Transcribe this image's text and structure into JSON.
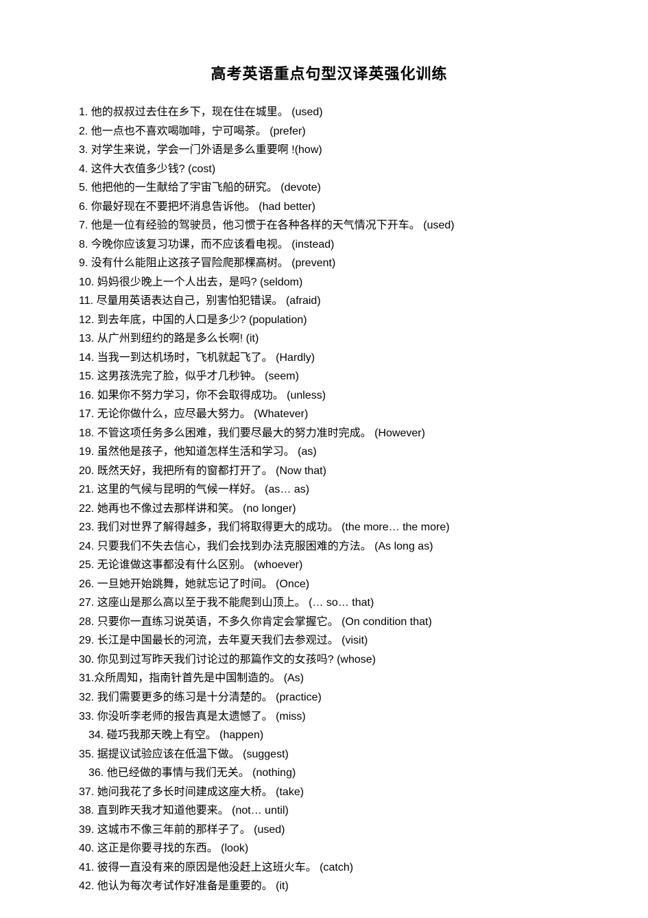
{
  "title": "高考英语重点句型汉译英强化训练",
  "title_fontsize": 22,
  "body_fontsize": 16,
  "line_height": 1.72,
  "background_color": "#ffffff",
  "text_color": "#000000",
  "items": [
    {
      "num": "1.",
      "sentence": "  他的叔叔过去住在乡下，现在住在城里。",
      "gap": "      ",
      "hint": "(used)",
      "indent": false
    },
    {
      "num": "2.",
      "sentence": "   他一点也不喜欢喝咖啡，宁可喝茶。",
      "gap": "      ",
      "hint": "(prefer)",
      "indent": false
    },
    {
      "num": "3.",
      "sentence": " 对学生来说，学会一门外语是多么重要啊",
      "gap": "      ",
      "hint": "!(how)",
      "indent": false
    },
    {
      "num": "4.",
      "sentence": "   这件大衣值多少钱?",
      "gap": "   ",
      "hint": "(cost)",
      "indent": false
    },
    {
      "num": "5.",
      "sentence": "   他把他的一生献给了宇宙飞船的研究。",
      "gap": "      ",
      "hint": "(devote)",
      "indent": false
    },
    {
      "num": "6.",
      "sentence": " 你最好现在不要把坏消息告诉他。",
      "gap": "      ",
      "hint": "(had better)",
      "indent": false
    },
    {
      "num": "7.",
      "sentence": " 他是一位有经验的驾驶员，他习惯于在各种各样的天气情况下开车。",
      "gap": "       ",
      "hint": "(used)",
      "indent": false
    },
    {
      "num": "8.",
      "sentence": " 今晚你应该复习功课，而不应该看电视。",
      "gap": "      ",
      "hint": "(instead)",
      "indent": false
    },
    {
      "num": "9.",
      "sentence": " 没有什么能阻止这孩子冒险爬那棵高树。",
      "gap": "      ",
      "hint": "(prevent)",
      "indent": false
    },
    {
      "num": "10.",
      "sentence": " 妈妈很少晚上一个人出去，是吗?",
      "gap": "     ",
      "hint": "(seldom)",
      "indent": false
    },
    {
      "num": "11.",
      "sentence": "  尽量用英语表达自己，别害怕犯错误。",
      "gap": "      ",
      "hint": "(afraid)",
      "indent": false
    },
    {
      "num": "12.",
      "sentence": "  到去年底，中国的人口是多少?",
      "gap": "     ",
      "hint": "(population)",
      "indent": false
    },
    {
      "num": "13.",
      "sentence": "  从广州到纽约的路是多么长啊!",
      "gap": "     ",
      "hint": "(it)",
      "indent": false
    },
    {
      "num": "14.",
      "sentence": "  当我一到达机场时，飞机就起飞了。",
      "gap": "      ",
      "hint": "(Hardly)",
      "indent": false
    },
    {
      "num": "15.",
      "sentence": "  这男孩洗完了脸，似乎才几秒钟。",
      "gap": "      ",
      "hint": "(seem)",
      "indent": false
    },
    {
      "num": "16.",
      "sentence": "  如果你不努力学习，你不会取得成功。",
      "gap": "      ",
      "hint": "(unless)",
      "indent": false
    },
    {
      "num": "17.",
      "sentence": "  无论你做什么，应尽最大努力。",
      "gap": "      ",
      "hint": "(Whatever)",
      "indent": false
    },
    {
      "num": "18.",
      "sentence": "  不管这项任务多么困难，我们要尽最大的努力准时完成。",
      "gap": "      ",
      "hint": "(However)",
      "indent": false
    },
    {
      "num": "19.",
      "sentence": "  虽然他是孩子，他知道怎样生活和学习。",
      "gap": "      ",
      "hint": "(as)",
      "indent": false
    },
    {
      "num": "20.",
      "sentence": "  既然天好，我把所有的窗都打开了。",
      "gap": "      ",
      "hint": "(Now that)",
      "indent": false
    },
    {
      "num": "21.",
      "sentence": "  这里的气候与昆明的气候一样好。",
      "gap": "      ",
      "hint": "(as… as)",
      "indent": false
    },
    {
      "num": "22.",
      "sentence": "  她再也不像过去那样讲和笑。",
      "gap": "      ",
      "hint": "(no longer)",
      "indent": false
    },
    {
      "num": "23.",
      "sentence": "  我们对世界了解得越多，我们将取得更大的成功。",
      "gap": "      ",
      "hint": "(the more… the more)",
      "indent": false
    },
    {
      "num": "24.",
      "sentence": "  只要我们不失去信心，我们会找到办法克服困难的方法。",
      "gap": "       ",
      "hint": "(As long as)",
      "indent": false
    },
    {
      "num": "25.",
      "sentence": "  无论谁做这事都没有什么区别。",
      "gap": "      ",
      "hint": "(whoever)",
      "indent": false
    },
    {
      "num": "26.",
      "sentence": "   一旦她开始跳舞，她就忘记了时间。",
      "gap": "      ",
      "hint": "(Once)",
      "indent": false
    },
    {
      "num": "27.",
      "sentence": "  这座山是那么高以至于我不能爬到山顶上。",
      "gap": "      ",
      "hint": "(… so… that)",
      "indent": false
    },
    {
      "num": "28.",
      "sentence": "  只要你一直练习说英语，不多久你肯定会掌握它。",
      "gap": "       ",
      "hint": "(On condition that)",
      "indent": false
    },
    {
      "num": "29.",
      "sentence": "  长江是中国最长的河流，去年夏天我们去参观过。",
      "gap": "       ",
      "hint": "(visit)",
      "indent": false
    },
    {
      "num": "30.",
      "sentence": "  你见到过写昨天我们讨论过的那篇作文的女孩吗?",
      "gap": "       ",
      "hint": "(whose)",
      "indent": false
    },
    {
      "num": "31.",
      "sentence": "众所周知，指南针首先是中国制造的。",
      "gap": "      ",
      "hint": "(As)",
      "indent": false
    },
    {
      "num": "32.",
      "sentence": "  我们需要更多的练习是十分清楚的。",
      "gap": "      ",
      "hint": "(practice)",
      "indent": false
    },
    {
      "num": "33.",
      "sentence": "  你没听李老师的报告真是太遗憾了。",
      "gap": "      ",
      "hint": "(miss)",
      "indent": false
    },
    {
      "num": "34.",
      "sentence": " 碰巧我那天晚上有空。",
      "gap": "     ",
      "hint": "(happen)",
      "indent": true
    },
    {
      "num": "35.",
      "sentence": " 据提议试验应该在低温下做。",
      "gap": "     ",
      "hint": "(suggest)",
      "indent": false
    },
    {
      "num": "36.",
      "sentence": " 他已经做的事情与我们无关。",
      "gap": "      ",
      "hint": "(nothing)",
      "indent": true
    },
    {
      "num": "37.",
      "sentence": "  她问我花了多长时间建成这座大桥。",
      "gap": "      ",
      "hint": "(take)",
      "indent": false
    },
    {
      "num": "38.",
      "sentence": "  直到昨天我才知道他要来。",
      "gap": "      ",
      "hint": "(not… until)",
      "indent": false
    },
    {
      "num": "39.",
      "sentence": "  这城市不像三年前的那样子了。",
      "gap": "      ",
      "hint": "(used)",
      "indent": false
    },
    {
      "num": "40.",
      "sentence": "  这正是你要寻找的东西。",
      "gap": "      ",
      "hint": "(look)",
      "indent": false
    },
    {
      "num": "41.",
      "sentence": "  彼得一直没有来的原因是他没赶上这班火车。",
      "gap": "       ",
      "hint": "(catch)",
      "indent": false
    },
    {
      "num": "42.",
      "sentence": "  他认为每次考试作好准备是重要的。",
      "gap": "      ",
      "hint": "(it)",
      "indent": false
    }
  ]
}
